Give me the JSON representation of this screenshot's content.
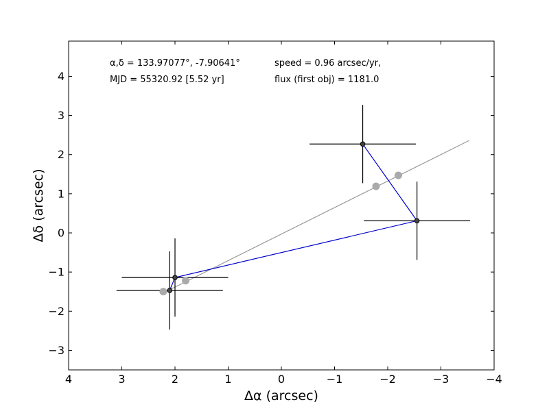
{
  "chart_data": {
    "type": "scatter",
    "xlabel": "Δα (arcsec)",
    "ylabel": "Δδ (arcsec)",
    "xlim": [
      4,
      -4
    ],
    "ylim": [
      -3.5,
      4.9
    ],
    "xticks": [
      4,
      3,
      2,
      1,
      0,
      -1,
      -2,
      -3,
      -4
    ],
    "yticks": [
      -3,
      -2,
      -1,
      0,
      1,
      2,
      3,
      4
    ],
    "grid": false,
    "annotations": {
      "radec": "α,δ = 133.97077°, -7.90641°",
      "speed": "speed = 0.96 arcsec/yr,",
      "mjd": "MJD = 55320.92 [5.52 yr]",
      "flux": "flux (first obj) = 1181.0"
    },
    "series": [
      {
        "style": "blue-path-with-errorbars",
        "color": "#0000cc",
        "points": [
          {
            "x": 2.1,
            "y": -1.47,
            "xerr": [
              1.0,
              1.0
            ],
            "yerr": [
              1.0,
              1.0
            ]
          },
          {
            "x": 2.0,
            "y": -1.14,
            "xerr": [
              1.0,
              1.0
            ],
            "yerr": [
              1.0,
              1.0
            ]
          },
          {
            "x": -2.55,
            "y": 0.31,
            "xerr": [
              1.0,
              1.0
            ],
            "yerr": [
              1.0,
              1.0
            ]
          },
          {
            "x": -1.53,
            "y": 2.27,
            "xerr": [
              1.0,
              1.0
            ],
            "yerr": [
              1.0,
              1.0
            ]
          }
        ]
      },
      {
        "style": "gray-fit-line",
        "color": "#999999",
        "points": [
          {
            "x": 2.2,
            "y": -1.52
          },
          {
            "x": -3.53,
            "y": 2.36
          }
        ]
      },
      {
        "style": "gray-dots",
        "color": "#aaaaaa",
        "points": [
          {
            "x": 2.22,
            "y": -1.5
          },
          {
            "x": 1.8,
            "y": -1.22
          },
          {
            "x": -1.78,
            "y": 1.19
          },
          {
            "x": -2.2,
            "y": 1.47
          }
        ]
      }
    ]
  }
}
